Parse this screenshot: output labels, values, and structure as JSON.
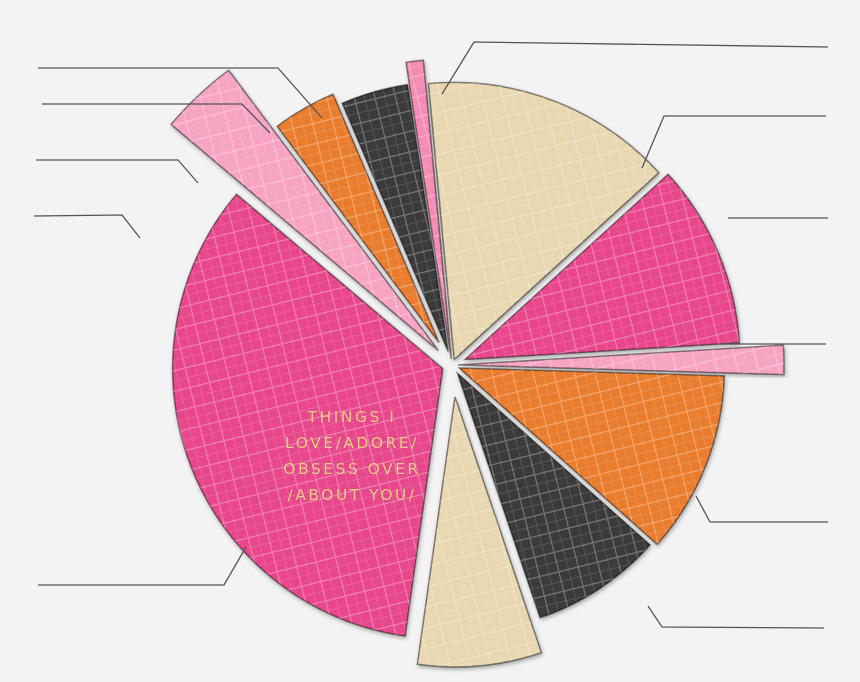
{
  "chart_data": {
    "type": "pie",
    "title": "THINGS I\nLOVE/ADORE/\nOBSESS OVER\n/ABOUT YOU/",
    "legend": "none",
    "slice_labels": "blank leader lines",
    "slices": [
      {
        "value": 33.0,
        "color": "#e8478c"
      },
      {
        "value": 3.5,
        "color": "#f7a3c2"
      },
      {
        "value": 3.7,
        "color": "#ea7b2f"
      },
      {
        "value": 3.9,
        "color": "#3a3a3a"
      },
      {
        "value": 0.9,
        "color": "#f48bb5"
      },
      {
        "value": 14.3,
        "color": "#e8d7b0"
      },
      {
        "value": 10.5,
        "color": "#e8478c"
      },
      {
        "value": 1.4,
        "color": "#f7a3c2"
      },
      {
        "value": 10.8,
        "color": "#ea7b2f"
      },
      {
        "value": 8.0,
        "color": "#3a3a3a"
      },
      {
        "value": 7.2,
        "color": "#e8d7b0"
      }
    ]
  }
}
